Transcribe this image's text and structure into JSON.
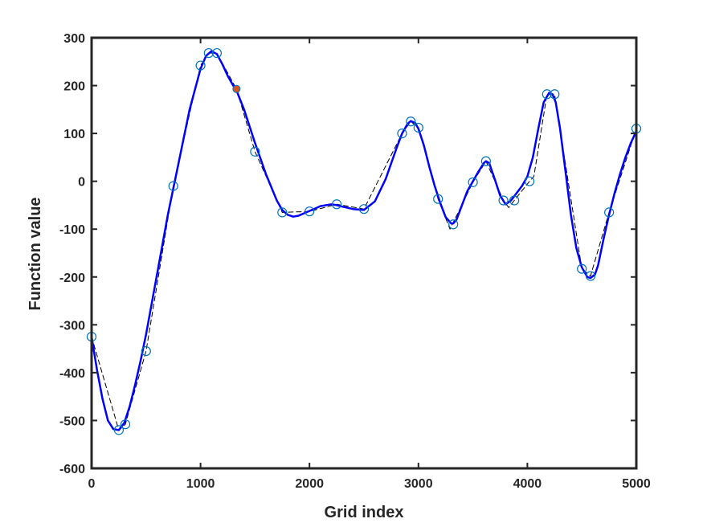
{
  "chart_data": {
    "type": "line",
    "title": "",
    "xlabel": "Grid index",
    "ylabel": "Function value",
    "xlim": [
      0,
      5000
    ],
    "ylim": [
      -600,
      300
    ],
    "xticks": [
      0,
      1000,
      2000,
      3000,
      4000,
      5000
    ],
    "yticks": [
      -600,
      -500,
      -400,
      -300,
      -200,
      -100,
      0,
      100,
      200,
      300
    ],
    "xtick_labels": [
      "0",
      "1000",
      "2000",
      "3000",
      "4000",
      "5000"
    ],
    "ytick_labels": [
      "-600",
      "-500",
      "-400",
      "-300",
      "-200",
      "-100",
      "0",
      "100",
      "200",
      "300"
    ],
    "grid": false,
    "box": true,
    "series": [
      {
        "kind": "line",
        "color": "#0000ff",
        "style": "solid",
        "x": [
          0,
          50,
          100,
          150,
          200,
          250,
          300,
          350,
          400,
          450,
          500,
          600,
          700,
          750,
          800,
          900,
          1000,
          1050,
          1100,
          1150,
          1200,
          1250,
          1300,
          1330,
          1400,
          1500,
          1600,
          1700,
          1750,
          1800,
          1850,
          1900,
          2000,
          2100,
          2200,
          2250,
          2300,
          2400,
          2500,
          2600,
          2700,
          2800,
          2850,
          2900,
          2930,
          2970,
          3000,
          3050,
          3100,
          3150,
          3200,
          3250,
          3300,
          3320,
          3350,
          3400,
          3450,
          3500,
          3550,
          3600,
          3620,
          3650,
          3700,
          3750,
          3800,
          3850,
          3900,
          3950,
          4000,
          4050,
          4100,
          4150,
          4200,
          4230,
          4260,
          4300,
          4350,
          4400,
          4450,
          4500,
          4550,
          4580,
          4620,
          4650,
          4700,
          4750,
          4800,
          4850,
          4900,
          4950,
          5000
        ],
        "y": [
          -325,
          -395,
          -455,
          -500,
          -518,
          -520,
          -505,
          -470,
          -425,
          -375,
          -320,
          -195,
          -70,
          -15,
          40,
          150,
          235,
          262,
          272,
          266,
          245,
          220,
          200,
          190,
          150,
          80,
          15,
          -40,
          -60,
          -70,
          -74,
          -72,
          -62,
          -52,
          -48,
          -50,
          -53,
          -58,
          -60,
          -42,
          5,
          70,
          100,
          120,
          126,
          122,
          110,
          75,
          30,
          -10,
          -45,
          -75,
          -88,
          -88,
          -80,
          -50,
          -20,
          0,
          20,
          38,
          42,
          38,
          5,
          -30,
          -48,
          -40,
          -25,
          -10,
          10,
          50,
          110,
          165,
          185,
          182,
          165,
          110,
          20,
          -70,
          -140,
          -180,
          -200,
          -202,
          -195,
          -175,
          -120,
          -70,
          -25,
          15,
          50,
          80,
          105
        ]
      },
      {
        "kind": "line",
        "color": "#000000",
        "style": "dashed",
        "x": [
          0,
          250,
          310,
          500,
          750,
          1000,
          1075,
          1150,
          1330,
          1500,
          1750,
          2000,
          2250,
          2500,
          2850,
          2930,
          3000,
          3180,
          3290,
          3500,
          3620,
          3780,
          3830,
          3880,
          4020,
          4060,
          4180,
          4250,
          4500,
          4580,
          4750,
          5000
        ],
        "y": [
          -325,
          -520,
          -508,
          -355,
          -10,
          242,
          268,
          268,
          193,
          62,
          -65,
          -63,
          -48,
          -58,
          100,
          125,
          112,
          -37,
          -100,
          -2,
          42,
          -40,
          -55,
          -40,
          0,
          10,
          182,
          182,
          -183,
          -198,
          -65,
          110
        ]
      }
    ],
    "markers": {
      "style": "open-circle",
      "color": "#0072bd",
      "x": [
        0,
        250,
        310,
        500,
        750,
        1000,
        1075,
        1150,
        1500,
        1750,
        2000,
        2250,
        2500,
        2850,
        2930,
        3000,
        3180,
        3320,
        3500,
        3620,
        3780,
        3880,
        4020,
        4180,
        4250,
        4500,
        4580,
        4750,
        5000
      ],
      "y": [
        -325,
        -520,
        -508,
        -355,
        -10,
        242,
        268,
        268,
        62,
        -65,
        -63,
        -48,
        -58,
        100,
        125,
        112,
        -37,
        -90,
        -2,
        42,
        -40,
        -40,
        0,
        182,
        182,
        -183,
        -198,
        -65,
        110
      ]
    },
    "highlight_point": {
      "x": 1330,
      "y": 193,
      "fill": "#d95319",
      "edge": "#0072bd"
    }
  }
}
